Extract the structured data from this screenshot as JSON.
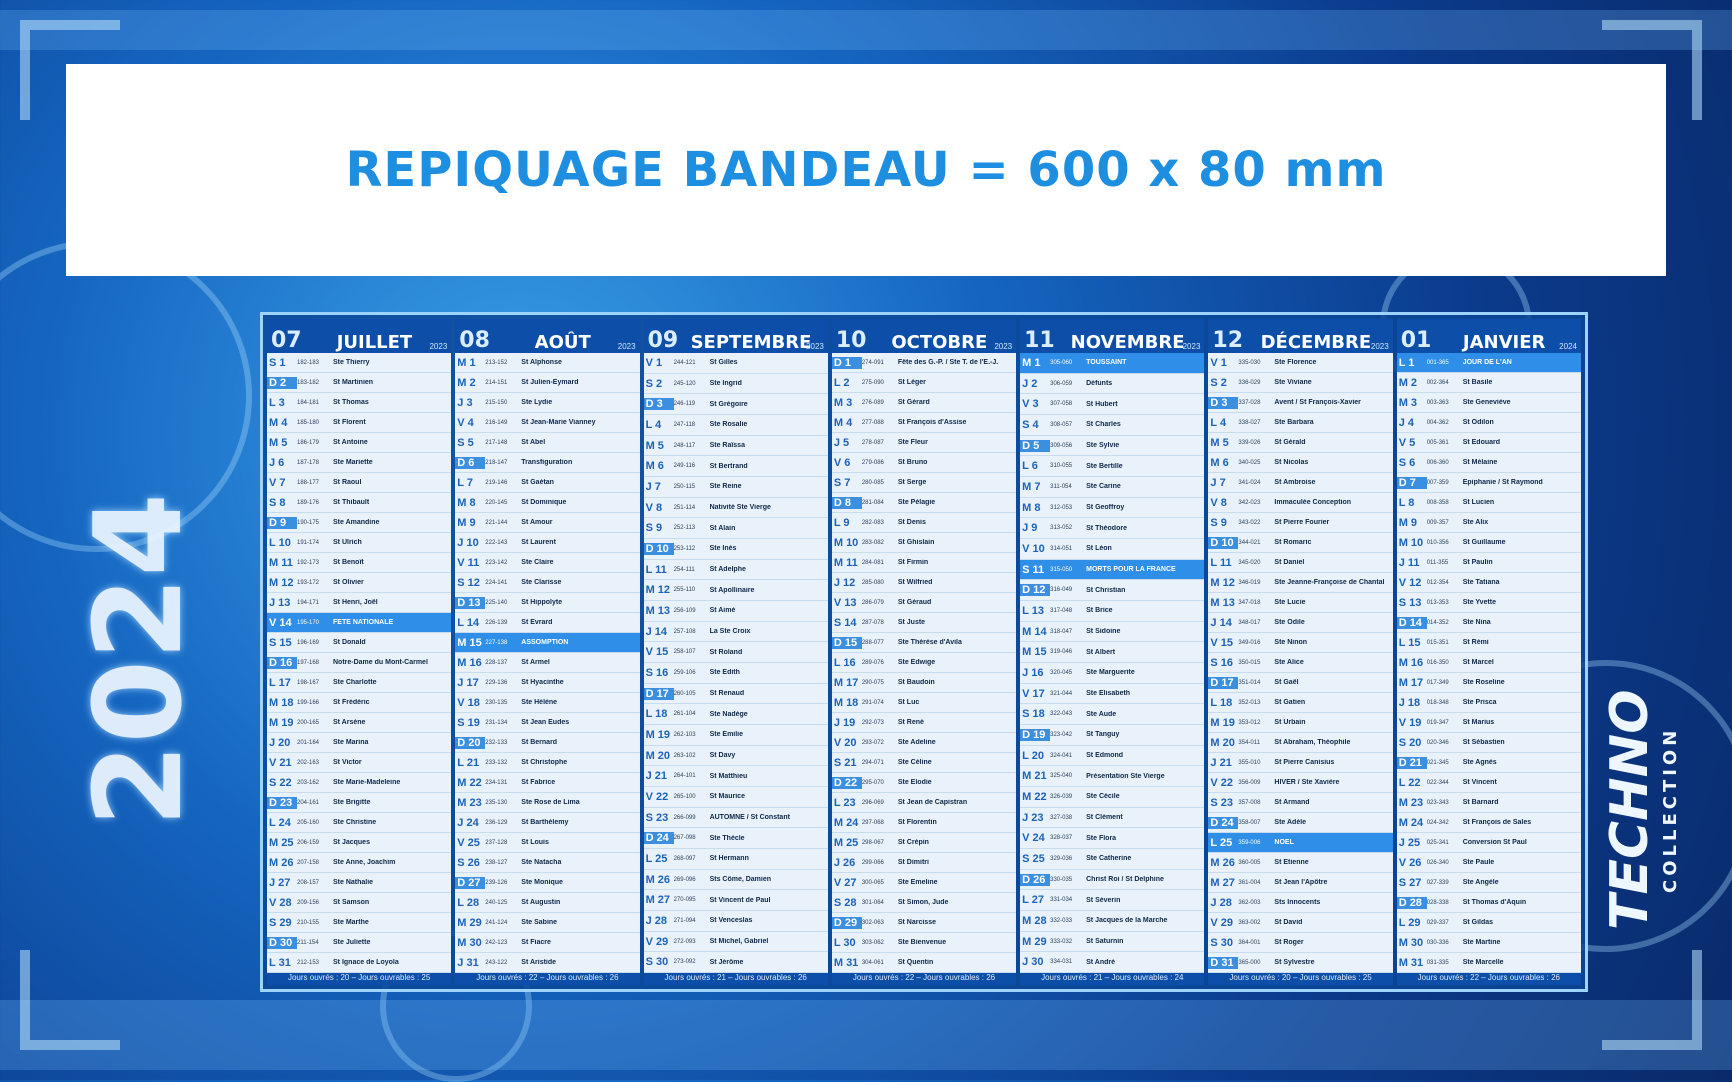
{
  "banner": {
    "text": "REPIQUAGE BANDEAU = 600 x 80 mm"
  },
  "year_text": "2024",
  "brand": {
    "line1": "TECHNO",
    "line2": "COLLECTION"
  },
  "months": [
    {
      "num": "07",
      "name": "JUILLET",
      "year": "2023",
      "footer": "Jours ouvrés : 20 – Jours ouvrables : 25",
      "days": [
        [
          "S 1",
          "182-183",
          "Ste Thierry"
        ],
        [
          "D 2",
          "183-182",
          "St Martinien"
        ],
        [
          "L 3",
          "184-181",
          "St Thomas"
        ],
        [
          "M 4",
          "185-180",
          "St Florent"
        ],
        [
          "M 5",
          "186-179",
          "St Antoine"
        ],
        [
          "J 6",
          "187-178",
          "Ste Mariette"
        ],
        [
          "V 7",
          "188-177",
          "St Raoul"
        ],
        [
          "S 8",
          "189-176",
          "St Thibault"
        ],
        [
          "D 9",
          "190-175",
          "Ste Amandine"
        ],
        [
          "L 10",
          "191-174",
          "St Ulrich"
        ],
        [
          "M 11",
          "192-173",
          "St Benoît"
        ],
        [
          "M 12",
          "193-172",
          "St Olivier"
        ],
        [
          "J 13",
          "194-171",
          "St Henri, Joël"
        ],
        [
          "V 14",
          "195-170",
          "FÊTE NATIONALE"
        ],
        [
          "S 15",
          "196-169",
          "St Donald"
        ],
        [
          "D 16",
          "197-168",
          "Notre-Dame du Mont-Carmel"
        ],
        [
          "L 17",
          "198-167",
          "Ste Charlotte"
        ],
        [
          "M 18",
          "199-166",
          "St Frédéric"
        ],
        [
          "M 19",
          "200-165",
          "St Arsène"
        ],
        [
          "J 20",
          "201-164",
          "Ste Marina"
        ],
        [
          "V 21",
          "202-163",
          "St Victor"
        ],
        [
          "S 22",
          "203-162",
          "Ste Marie-Madeleine"
        ],
        [
          "D 23",
          "204-161",
          "Ste Brigitte"
        ],
        [
          "L 24",
          "205-160",
          "Ste Christine"
        ],
        [
          "M 25",
          "206-159",
          "St Jacques"
        ],
        [
          "M 26",
          "207-158",
          "Ste Anne, Joachim"
        ],
        [
          "J 27",
          "208-157",
          "Ste Nathalie"
        ],
        [
          "V 28",
          "209-156",
          "St Samson"
        ],
        [
          "S 29",
          "210-155",
          "Ste Marthe"
        ],
        [
          "D 30",
          "211-154",
          "Ste Juliette"
        ],
        [
          "L 31",
          "212-153",
          "St Ignace de Loyola"
        ]
      ]
    },
    {
      "num": "08",
      "name": "AOÛT",
      "year": "2023",
      "footer": "Jours ouvrés : 22 – Jours ouvrables : 26",
      "days": [
        [
          "M 1",
          "213-152",
          "St Alphonse"
        ],
        [
          "M 2",
          "214-151",
          "St Julien-Eymard"
        ],
        [
          "J 3",
          "215-150",
          "Ste Lydie"
        ],
        [
          "V 4",
          "216-149",
          "St Jean-Marie Vianney"
        ],
        [
          "S 5",
          "217-148",
          "St Abel"
        ],
        [
          "D 6",
          "218-147",
          "Transfiguration"
        ],
        [
          "L 7",
          "219-146",
          "St Gaétan"
        ],
        [
          "M 8",
          "220-145",
          "St Dominique"
        ],
        [
          "M 9",
          "221-144",
          "St Amour"
        ],
        [
          "J 10",
          "222-143",
          "St Laurent"
        ],
        [
          "V 11",
          "223-142",
          "Ste Claire"
        ],
        [
          "S 12",
          "224-141",
          "Ste Clarisse"
        ],
        [
          "D 13",
          "225-140",
          "St Hippolyte"
        ],
        [
          "L 14",
          "226-139",
          "St Évrard"
        ],
        [
          "M 15",
          "227-138",
          "ASSOMPTION"
        ],
        [
          "M 16",
          "228-137",
          "St Armel"
        ],
        [
          "J 17",
          "229-136",
          "St Hyacinthe"
        ],
        [
          "V 18",
          "230-135",
          "Ste Hélène"
        ],
        [
          "S 19",
          "231-134",
          "St Jean Eudes"
        ],
        [
          "D 20",
          "232-133",
          "St Bernard"
        ],
        [
          "L 21",
          "233-132",
          "St Christophe"
        ],
        [
          "M 22",
          "234-131",
          "St Fabrice"
        ],
        [
          "M 23",
          "235-130",
          "Ste Rose de Lima"
        ],
        [
          "J 24",
          "236-129",
          "St Barthélemy"
        ],
        [
          "V 25",
          "237-128",
          "St Louis"
        ],
        [
          "S 26",
          "238-127",
          "Ste Natacha"
        ],
        [
          "D 27",
          "239-126",
          "Ste Monique"
        ],
        [
          "L 28",
          "240-125",
          "St Augustin"
        ],
        [
          "M 29",
          "241-124",
          "Ste Sabine"
        ],
        [
          "M 30",
          "242-123",
          "St Fiacre"
        ],
        [
          "J 31",
          "243-122",
          "St Aristide"
        ]
      ]
    },
    {
      "num": "09",
      "name": "SEPTEMBRE",
      "year": "2023",
      "footer": "Jours ouvrés : 21 – Jours ouvrables : 26",
      "days": [
        [
          "V 1",
          "244-121",
          "St Gilles"
        ],
        [
          "S 2",
          "245-120",
          "Ste Ingrid"
        ],
        [
          "D 3",
          "246-119",
          "St Grégoire"
        ],
        [
          "L 4",
          "247-118",
          "Ste Rosalie"
        ],
        [
          "M 5",
          "248-117",
          "Ste Raïssa"
        ],
        [
          "M 6",
          "249-116",
          "St Bertrand"
        ],
        [
          "J 7",
          "250-115",
          "Ste Reine"
        ],
        [
          "V 8",
          "251-114",
          "Nativité Ste Vierge"
        ],
        [
          "S 9",
          "252-113",
          "St Alain"
        ],
        [
          "D 10",
          "253-112",
          "Ste Inès"
        ],
        [
          "L 11",
          "254-111",
          "St Adelphe"
        ],
        [
          "M 12",
          "255-110",
          "St Apollinaire"
        ],
        [
          "M 13",
          "256-109",
          "St Aimé"
        ],
        [
          "J 14",
          "257-108",
          "La Ste Croix"
        ],
        [
          "V 15",
          "258-107",
          "St Roland"
        ],
        [
          "S 16",
          "259-106",
          "Ste Édith"
        ],
        [
          "D 17",
          "260-105",
          "St Renaud"
        ],
        [
          "L 18",
          "261-104",
          "Ste Nadège"
        ],
        [
          "M 19",
          "262-103",
          "Ste Émilie"
        ],
        [
          "M 20",
          "263-102",
          "St Davy"
        ],
        [
          "J 21",
          "264-101",
          "St Matthieu"
        ],
        [
          "V 22",
          "265-100",
          "St Maurice"
        ],
        [
          "S 23",
          "266-099",
          "AUTOMNE / St Constant"
        ],
        [
          "D 24",
          "267-098",
          "Ste Thècle"
        ],
        [
          "L 25",
          "268-097",
          "St Hermann"
        ],
        [
          "M 26",
          "269-096",
          "Sts Côme, Damien"
        ],
        [
          "M 27",
          "270-095",
          "St Vincent de Paul"
        ],
        [
          "J 28",
          "271-094",
          "St Venceslas"
        ],
        [
          "V 29",
          "272-093",
          "St Michel, Gabriel"
        ],
        [
          "S 30",
          "273-092",
          "St Jérôme"
        ]
      ]
    },
    {
      "num": "10",
      "name": "OCTOBRE",
      "year": "2023",
      "footer": "Jours ouvrés : 22 – Jours ouvrables : 26",
      "days": [
        [
          "D 1",
          "274-091",
          "Fête des G.-P. / Ste T. de l'E.-J."
        ],
        [
          "L 2",
          "275-090",
          "St Léger"
        ],
        [
          "M 3",
          "276-089",
          "St Gérard"
        ],
        [
          "M 4",
          "277-088",
          "St François d'Assise"
        ],
        [
          "J 5",
          "278-087",
          "Ste Fleur"
        ],
        [
          "V 6",
          "279-086",
          "St Bruno"
        ],
        [
          "S 7",
          "280-085",
          "St Serge"
        ],
        [
          "D 8",
          "281-084",
          "Ste Pélagie"
        ],
        [
          "L 9",
          "282-083",
          "St Denis"
        ],
        [
          "M 10",
          "283-082",
          "St Ghislain"
        ],
        [
          "M 11",
          "284-081",
          "St Firmin"
        ],
        [
          "J 12",
          "285-080",
          "St Wilfried"
        ],
        [
          "V 13",
          "286-079",
          "St Géraud"
        ],
        [
          "S 14",
          "287-078",
          "St Juste"
        ],
        [
          "D 15",
          "288-077",
          "Ste Thérèse d'Avila"
        ],
        [
          "L 16",
          "289-076",
          "Ste Edwige"
        ],
        [
          "M 17",
          "290-075",
          "St Baudoin"
        ],
        [
          "M 18",
          "291-074",
          "St Luc"
        ],
        [
          "J 19",
          "292-073",
          "St René"
        ],
        [
          "V 20",
          "293-072",
          "Ste Adeline"
        ],
        [
          "S 21",
          "294-071",
          "Ste Céline"
        ],
        [
          "D 22",
          "295-070",
          "Ste Élodie"
        ],
        [
          "L 23",
          "296-069",
          "St Jean de Capistran"
        ],
        [
          "M 24",
          "297-068",
          "St Florentin"
        ],
        [
          "M 25",
          "298-067",
          "St Crépin"
        ],
        [
          "J 26",
          "299-066",
          "St Dimitri"
        ],
        [
          "V 27",
          "300-065",
          "Ste Émeline"
        ],
        [
          "S 28",
          "301-064",
          "St Simon, Jude"
        ],
        [
          "D 29",
          "302-063",
          "St Narcisse"
        ],
        [
          "L 30",
          "303-062",
          "Ste Bienvenue"
        ],
        [
          "M 31",
          "304-061",
          "St Quentin"
        ]
      ]
    },
    {
      "num": "11",
      "name": "NOVEMBRE",
      "year": "2023",
      "footer": "Jours ouvrés : 21 – Jours ouvrables : 24",
      "days": [
        [
          "M 1",
          "305-060",
          "TOUSSAINT"
        ],
        [
          "J 2",
          "306-059",
          "Défunts"
        ],
        [
          "V 3",
          "307-058",
          "St Hubert"
        ],
        [
          "S 4",
          "308-057",
          "St Charles"
        ],
        [
          "D 5",
          "309-056",
          "Ste Sylvie"
        ],
        [
          "L 6",
          "310-055",
          "Ste Bertille"
        ],
        [
          "M 7",
          "311-054",
          "Ste Carine"
        ],
        [
          "M 8",
          "312-053",
          "St Geoffroy"
        ],
        [
          "J 9",
          "313-052",
          "St Théodore"
        ],
        [
          "V 10",
          "314-051",
          "St Léon"
        ],
        [
          "S 11",
          "315-050",
          "MORTS POUR LA FRANCE"
        ],
        [
          "D 12",
          "316-049",
          "St Christian"
        ],
        [
          "L 13",
          "317-048",
          "St Brice"
        ],
        [
          "M 14",
          "318-047",
          "St Sidoine"
        ],
        [
          "M 15",
          "319-046",
          "St Albert"
        ],
        [
          "J 16",
          "320-045",
          "Ste Marguerite"
        ],
        [
          "V 17",
          "321-044",
          "Ste Élisabeth"
        ],
        [
          "S 18",
          "322-043",
          "Ste Aude"
        ],
        [
          "D 19",
          "323-042",
          "St Tanguy"
        ],
        [
          "L 20",
          "324-041",
          "St Edmond"
        ],
        [
          "M 21",
          "325-040",
          "Présentation Ste Vierge"
        ],
        [
          "M 22",
          "326-039",
          "Ste Cécile"
        ],
        [
          "J 23",
          "327-038",
          "St Clément"
        ],
        [
          "V 24",
          "328-037",
          "Ste Flora"
        ],
        [
          "S 25",
          "329-036",
          "Ste Catherine"
        ],
        [
          "D 26",
          "330-035",
          "Christ Roi / St Delphine"
        ],
        [
          "L 27",
          "331-034",
          "St Séverin"
        ],
        [
          "M 28",
          "332-033",
          "St Jacques de la Marche"
        ],
        [
          "M 29",
          "333-032",
          "St Saturnin"
        ],
        [
          "J 30",
          "334-031",
          "St André"
        ]
      ]
    },
    {
      "num": "12",
      "name": "DÉCEMBRE",
      "year": "2023",
      "footer": "Jours ouvrés : 20 – Jours ouvrables : 25",
      "days": [
        [
          "V 1",
          "335-030",
          "Ste Florence"
        ],
        [
          "S 2",
          "336-029",
          "Ste Viviane"
        ],
        [
          "D 3",
          "337-028",
          "Avent / St François-Xavier"
        ],
        [
          "L 4",
          "338-027",
          "Ste Barbara"
        ],
        [
          "M 5",
          "339-026",
          "St Gérald"
        ],
        [
          "M 6",
          "340-025",
          "St Nicolas"
        ],
        [
          "J 7",
          "341-024",
          "St Ambroise"
        ],
        [
          "V 8",
          "342-023",
          "Immaculée Conception"
        ],
        [
          "S 9",
          "343-022",
          "St Pierre Fourier"
        ],
        [
          "D 10",
          "344-021",
          "St Romaric"
        ],
        [
          "L 11",
          "345-020",
          "St Daniel"
        ],
        [
          "M 12",
          "346-019",
          "Ste Jeanne-Françoise de Chantal"
        ],
        [
          "M 13",
          "347-018",
          "Ste Lucie"
        ],
        [
          "J 14",
          "348-017",
          "Ste Odile"
        ],
        [
          "V 15",
          "349-016",
          "Ste Ninon"
        ],
        [
          "S 16",
          "350-015",
          "Ste Alice"
        ],
        [
          "D 17",
          "351-014",
          "St Gaël"
        ],
        [
          "L 18",
          "352-013",
          "St Gatien"
        ],
        [
          "M 19",
          "353-012",
          "St Urbain"
        ],
        [
          "M 20",
          "354-011",
          "St Abraham, Théophile"
        ],
        [
          "J 21",
          "355-010",
          "St Pierre Canisius"
        ],
        [
          "V 22",
          "356-009",
          "HIVER / Ste Xavière"
        ],
        [
          "S 23",
          "357-008",
          "St Armand"
        ],
        [
          "D 24",
          "358-007",
          "Ste Adèle"
        ],
        [
          "L 25",
          "359-006",
          "NOËL"
        ],
        [
          "M 26",
          "360-005",
          "St Étienne"
        ],
        [
          "M 27",
          "361-004",
          "St Jean l'Apôtre"
        ],
        [
          "J 28",
          "362-003",
          "Sts Innocents"
        ],
        [
          "V 29",
          "363-002",
          "St David"
        ],
        [
          "S 30",
          "364-001",
          "St Roger"
        ],
        [
          "D 31",
          "365-000",
          "St Sylvestre"
        ]
      ]
    },
    {
      "num": "01",
      "name": "JANVIER",
      "year": "2024",
      "footer": "Jours ouvrés : 22 – Jours ouvrables : 26",
      "days": [
        [
          "L 1",
          "001-365",
          "JOUR DE L'AN"
        ],
        [
          "M 2",
          "002-364",
          "St Basile"
        ],
        [
          "M 3",
          "003-363",
          "Ste Geneviève"
        ],
        [
          "J 4",
          "004-362",
          "St Odilon"
        ],
        [
          "V 5",
          "005-361",
          "St Édouard"
        ],
        [
          "S 6",
          "006-360",
          "St Mélaine"
        ],
        [
          "D 7",
          "007-359",
          "Épiphanie / St Raymond"
        ],
        [
          "L 8",
          "008-358",
          "St Lucien"
        ],
        [
          "M 9",
          "009-357",
          "Ste Alix"
        ],
        [
          "M 10",
          "010-356",
          "St Guillaume"
        ],
        [
          "J 11",
          "011-355",
          "St Paulin"
        ],
        [
          "V 12",
          "012-354",
          "Ste Tatiana"
        ],
        [
          "S 13",
          "013-353",
          "Ste Yvette"
        ],
        [
          "D 14",
          "014-352",
          "Ste Nina"
        ],
        [
          "L 15",
          "015-351",
          "St Rémi"
        ],
        [
          "M 16",
          "016-350",
          "St Marcel"
        ],
        [
          "M 17",
          "017-349",
          "Ste Roseline"
        ],
        [
          "J 18",
          "018-348",
          "Ste Prisca"
        ],
        [
          "V 19",
          "019-347",
          "St Marius"
        ],
        [
          "S 20",
          "020-346",
          "St Sébastien"
        ],
        [
          "D 21",
          "021-345",
          "Ste Agnès"
        ],
        [
          "L 22",
          "022-344",
          "St Vincent"
        ],
        [
          "M 23",
          "023-343",
          "St Barnard"
        ],
        [
          "M 24",
          "024-342",
          "St François de Sales"
        ],
        [
          "J 25",
          "025-341",
          "Conversion St Paul"
        ],
        [
          "V 26",
          "026-340",
          "Ste Paule"
        ],
        [
          "S 27",
          "027-339",
          "Ste Angèle"
        ],
        [
          "D 28",
          "028-338",
          "St Thomas d'Aquin"
        ],
        [
          "L 29",
          "029-337",
          "St Gildas"
        ],
        [
          "M 30",
          "030-336",
          "Ste Martine"
        ],
        [
          "M 31",
          "031-335",
          "Ste Marcelle"
        ]
      ]
    }
  ]
}
